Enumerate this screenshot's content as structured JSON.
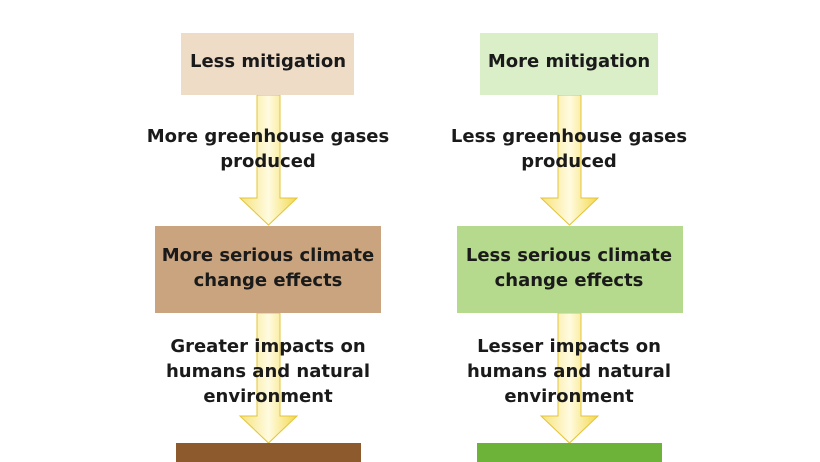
{
  "columns": [
    {
      "nodes": [
        {
          "lines": [
            "Less mitigation"
          ]
        },
        {
          "lines": [
            "More serious climate",
            "change effects"
          ]
        }
      ],
      "edges": [
        {
          "lines": [
            "More greenhouse gases",
            "produced"
          ]
        },
        {
          "lines": [
            "Greater impacts on",
            "humans and natural",
            "environment"
          ]
        }
      ]
    },
    {
      "nodes": [
        {
          "lines": [
            "More mitigation"
          ]
        },
        {
          "lines": [
            "Less serious climate",
            "change effects"
          ]
        }
      ],
      "edges": [
        {
          "lines": [
            "Less greenhouse gases",
            "produced"
          ]
        },
        {
          "lines": [
            "Lesser impacts on",
            "humans and natural",
            "environment"
          ]
        }
      ]
    }
  ]
}
